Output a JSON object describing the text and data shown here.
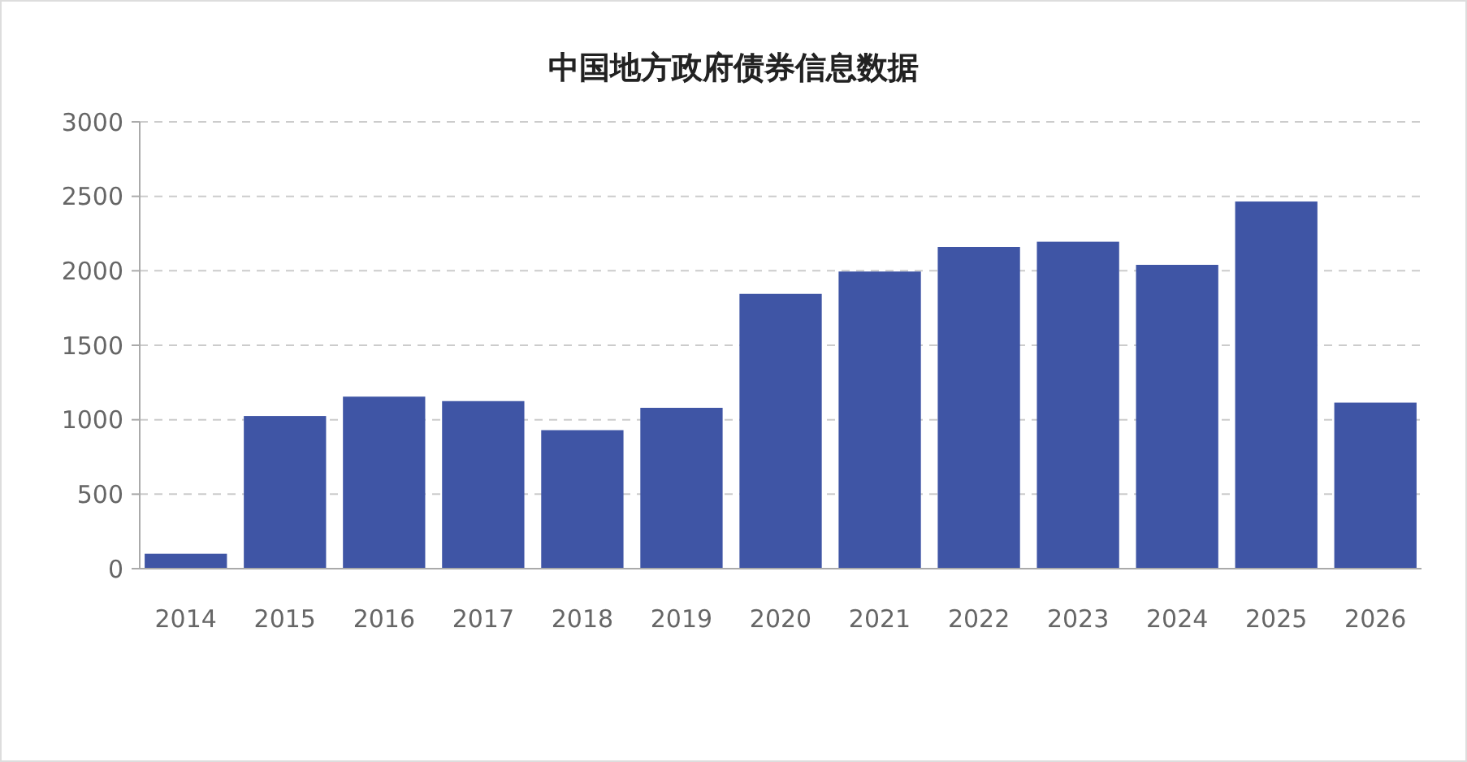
{
  "chart_data": {
    "type": "bar",
    "title": "中国地方政府债券信息数据",
    "categories": [
      "2014",
      "2015",
      "2016",
      "2017",
      "2018",
      "2019",
      "2020",
      "2021",
      "2022",
      "2023",
      "2024",
      "2025",
      "2026"
    ],
    "values": [
      100,
      1025,
      1155,
      1125,
      930,
      1080,
      1845,
      1995,
      2160,
      2195,
      2040,
      2465,
      1115
    ],
    "color": "#3f55a5",
    "ylim": [
      0,
      3000
    ],
    "yticks": [
      0,
      500,
      1000,
      1500,
      2000,
      2500,
      3000
    ],
    "grid": "y"
  }
}
